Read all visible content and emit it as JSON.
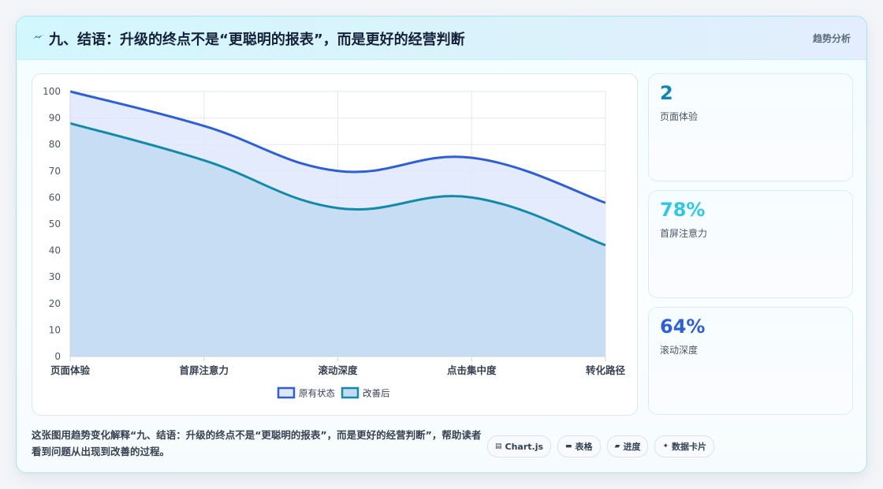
{
  "header": {
    "icon": "lightning-icon",
    "title": "九、结语：升级的终点不是“更聪明的报表”，而是更好的经营判断",
    "tag": "趋势分析"
  },
  "chart_data": {
    "type": "area",
    "categories": [
      "页面体验",
      "首屏注意力",
      "滚动深度",
      "点击集中度",
      "转化路径"
    ],
    "series": [
      {
        "name": "原有状态",
        "values": [
          100,
          87,
          70,
          75,
          58
        ],
        "color": "#2f5fd4",
        "fill": "#dfe8fb"
      },
      {
        "name": "改善后",
        "values": [
          88,
          74,
          56,
          60,
          42
        ],
        "color": "#138aa8",
        "fill": "#c2dbf1"
      }
    ],
    "ylim": [
      0,
      100
    ],
    "yticks": [
      0,
      10,
      20,
      30,
      40,
      50,
      60,
      70,
      80,
      90,
      100
    ],
    "grid": true,
    "legend": "bottom"
  },
  "stats": [
    {
      "value": "2",
      "label": "页面体验",
      "color": "#1187a8"
    },
    {
      "value": "78%",
      "label": "首屏注意力",
      "color": "#2fc8e0"
    },
    {
      "value": "64%",
      "label": "滚动深度",
      "color": "#2f5fd4"
    }
  ],
  "footer": {
    "description": "这张图用趋势变化解释“九、结语：升级的终点不是“更聪明的报表”，而是更好的经营判断”，帮助读者看到问题从出现到改善的过程。",
    "chips": [
      {
        "icon": "chart-icon",
        "label": "Chart.js"
      },
      {
        "icon": "table-icon",
        "label": "表格"
      },
      {
        "icon": "progress-icon",
        "label": "进度"
      },
      {
        "icon": "sparkle-icon",
        "label": "数据卡片"
      }
    ]
  }
}
